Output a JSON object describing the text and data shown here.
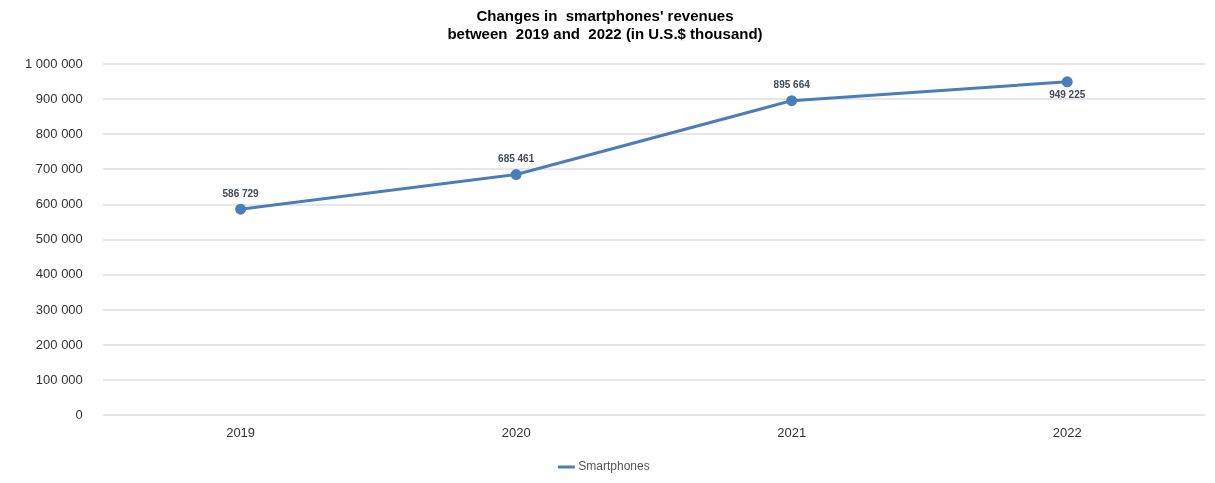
{
  "chart_data": {
    "type": "line",
    "title": "Changes in  smartphones' revenues\nbetween  2019 and  2022 (in U.S.$ thousand)",
    "categories": [
      "2019",
      "2020",
      "2021",
      "2022"
    ],
    "series": [
      {
        "name": "Smartphones",
        "color": "#4a7ebb",
        "values": [
          586729,
          685461,
          895664,
          949225
        ],
        "value_labels": [
          "586 729",
          "685 461",
          "895 664",
          "949 225"
        ]
      }
    ],
    "ylim": [
      0,
      1000000
    ],
    "yticks": [
      {
        "value": 0,
        "label": "0"
      },
      {
        "value": 100000,
        "label": "100 000"
      },
      {
        "value": 200000,
        "label": "200 000"
      },
      {
        "value": 300000,
        "label": "300 000"
      },
      {
        "value": 400000,
        "label": "400 000"
      },
      {
        "value": 500000,
        "label": "500 000"
      },
      {
        "value": 600000,
        "label": "600 000"
      },
      {
        "value": 700000,
        "label": "700 000"
      },
      {
        "value": 800000,
        "label": "800 000"
      },
      {
        "value": 900000,
        "label": "900 000"
      },
      {
        "value": 1000000,
        "label": "1 000 000"
      }
    ],
    "grid": "y",
    "legend": "bottom",
    "marker": "circle",
    "line_style": "solid"
  }
}
